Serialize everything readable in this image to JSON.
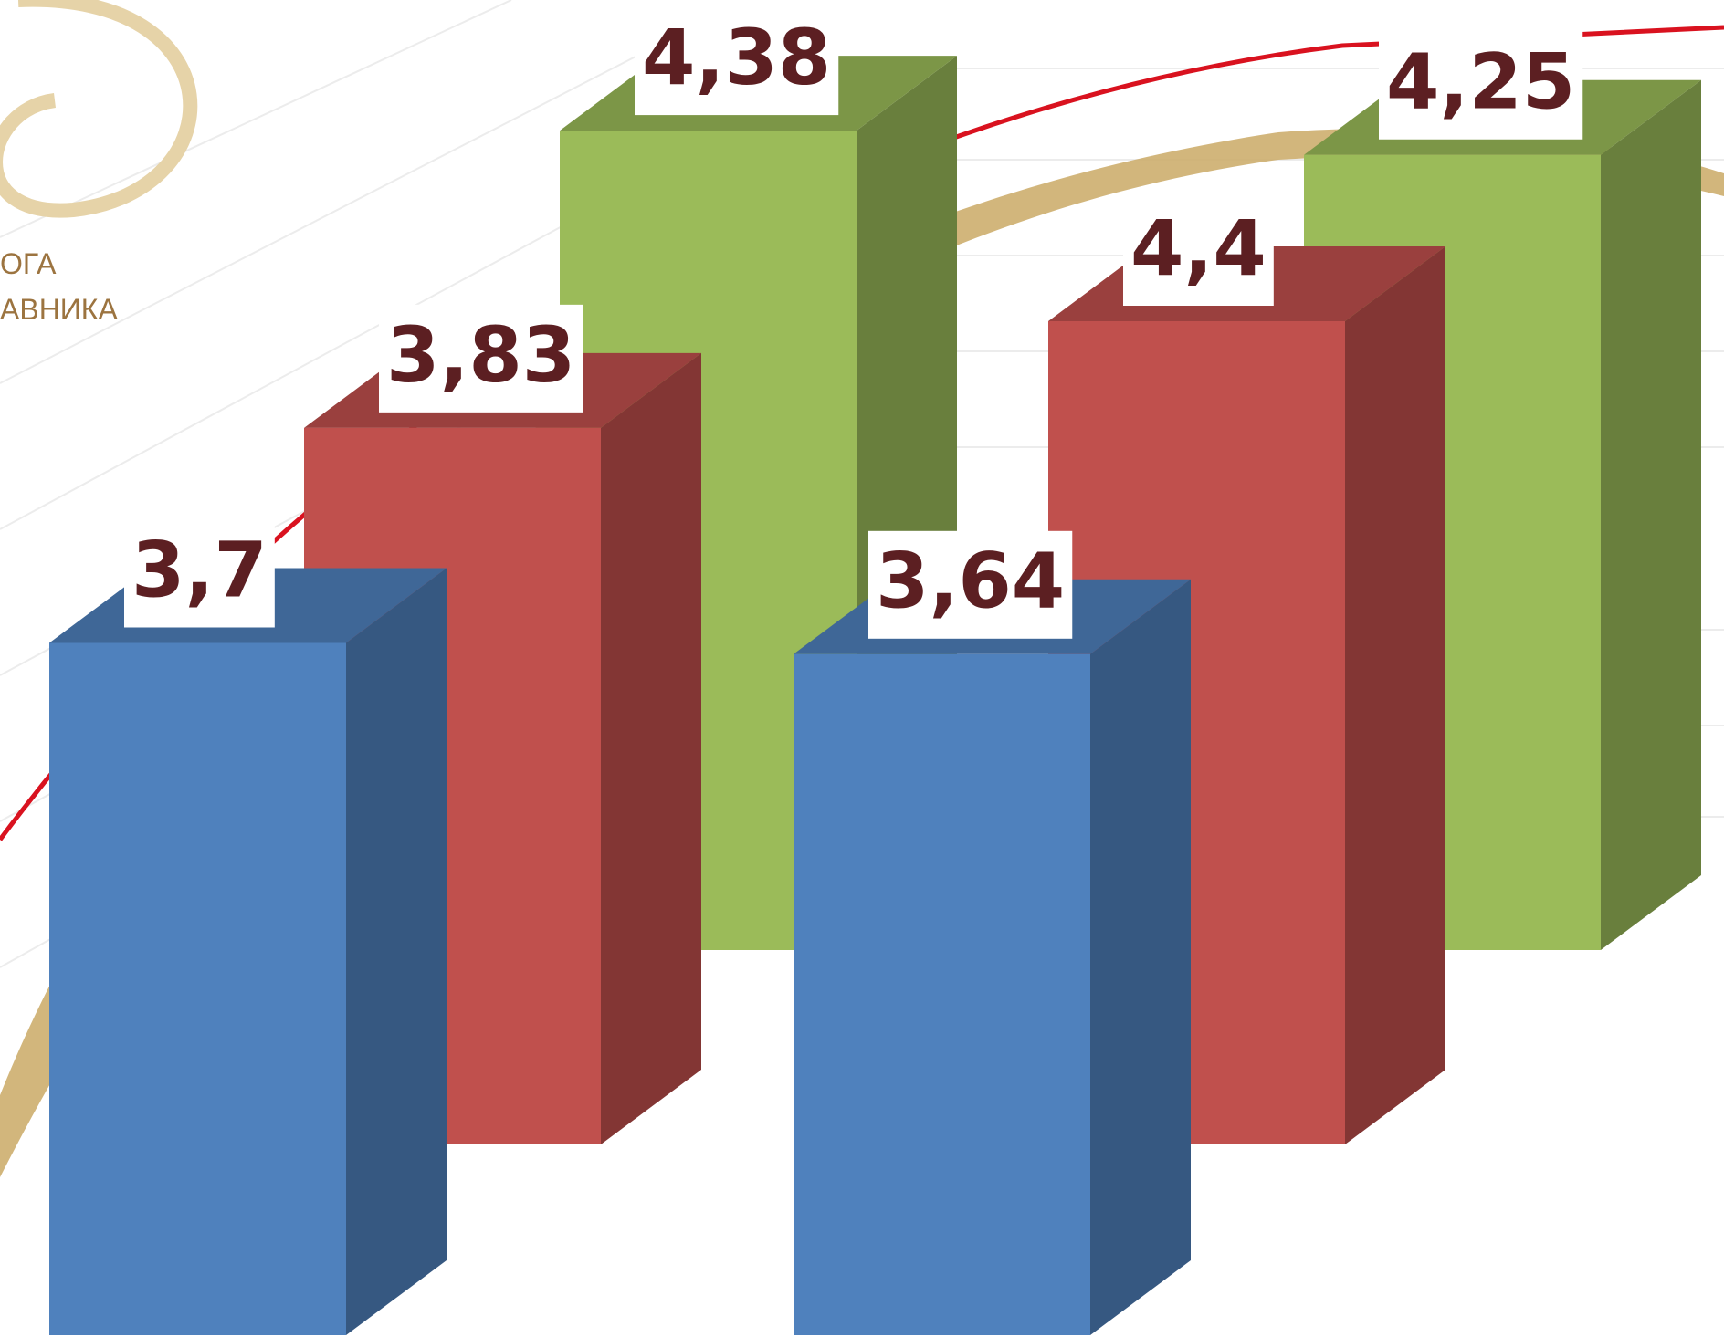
{
  "chart_data": {
    "type": "bar3d",
    "annotations": [
      "ОГА",
      "АВНИКА"
    ],
    "categories": [
      null,
      null
    ],
    "series": [
      {
        "color": "#4f81bd",
        "values": [
          3.7,
          3.64
        ],
        "value_labels": [
          "3,7",
          "3,64"
        ]
      },
      {
        "color": "#c0504d",
        "values": [
          3.83,
          4.4
        ],
        "value_labels": [
          "3,83",
          "4,4"
        ]
      },
      {
        "color": "#9bbb59",
        "values": [
          4.38,
          4.25
        ],
        "value_labels": [
          "4,38",
          "4,25"
        ]
      }
    ]
  }
}
